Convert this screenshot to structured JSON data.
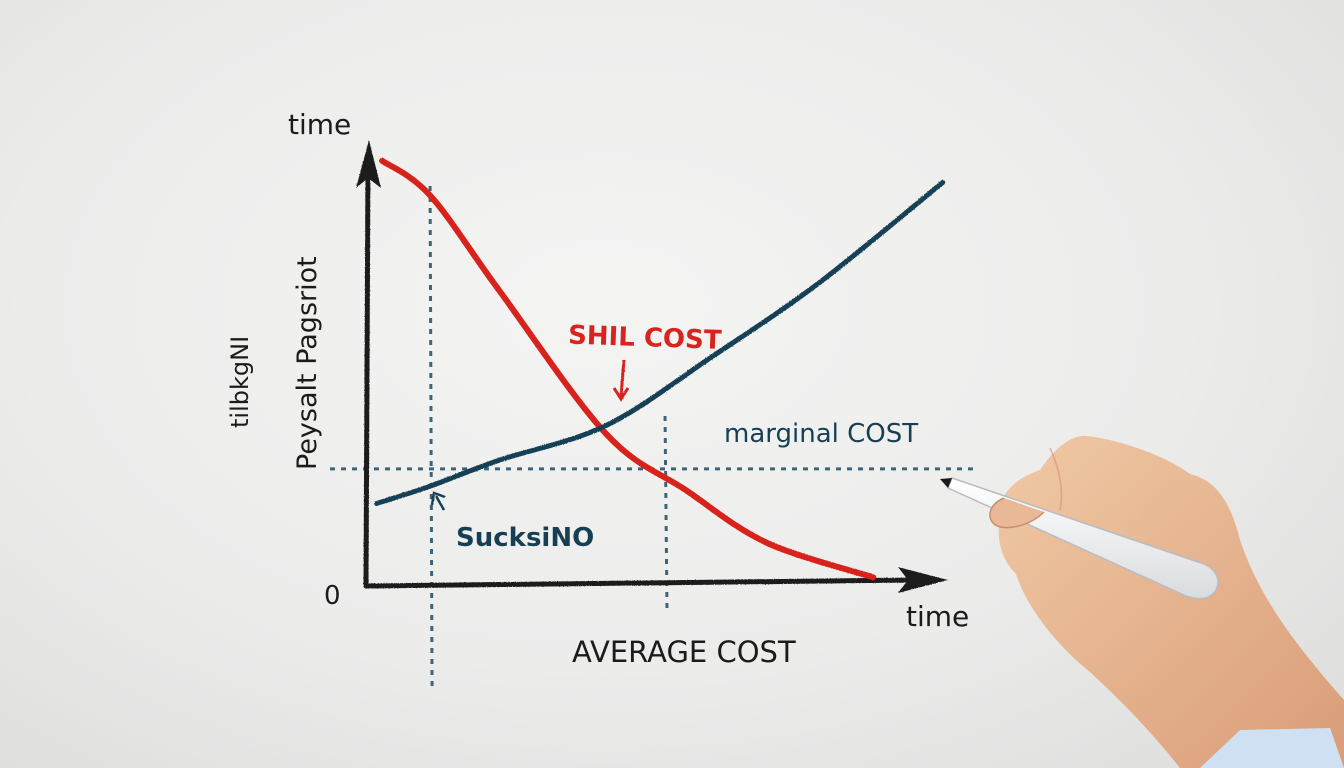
{
  "chart_data": {
    "type": "line",
    "title": "",
    "xlabel": "time",
    "ylabel": "time",
    "origin_label": "0",
    "side_labels": [
      "Peysalt Pagsriot",
      "tilbkgNI"
    ],
    "bottom_caption": "AVERAGE COST",
    "x_range": [
      0,
      100
    ],
    "y_range": [
      0,
      100
    ],
    "series": [
      {
        "name": "SHIL COST",
        "color": "#d8231f",
        "points": [
          [
            3,
            98
          ],
          [
            12,
            90
          ],
          [
            25,
            68
          ],
          [
            45,
            35
          ],
          [
            60,
            22
          ],
          [
            75,
            10
          ],
          [
            95,
            2
          ]
        ]
      },
      {
        "name": "marginal COST",
        "color": "#163f54",
        "points": [
          [
            2,
            19
          ],
          [
            12,
            23
          ],
          [
            25,
            29
          ],
          [
            45,
            37
          ],
          [
            65,
            53
          ],
          [
            85,
            70
          ],
          [
            108,
            93
          ]
        ]
      }
    ],
    "annotations": [
      {
        "text": "SHIL COST",
        "color": "#d8231f",
        "points_to": "intersection"
      },
      {
        "text": "marginal COST",
        "color": "#163f54"
      },
      {
        "text": "SucksiNO",
        "color": "#163f54",
        "points_to": "marginal-curve"
      }
    ],
    "guides": {
      "horizontal_dashed_y": 27,
      "vertical_dashed_x": [
        12,
        56
      ]
    },
    "grid": false,
    "legend": "none"
  }
}
